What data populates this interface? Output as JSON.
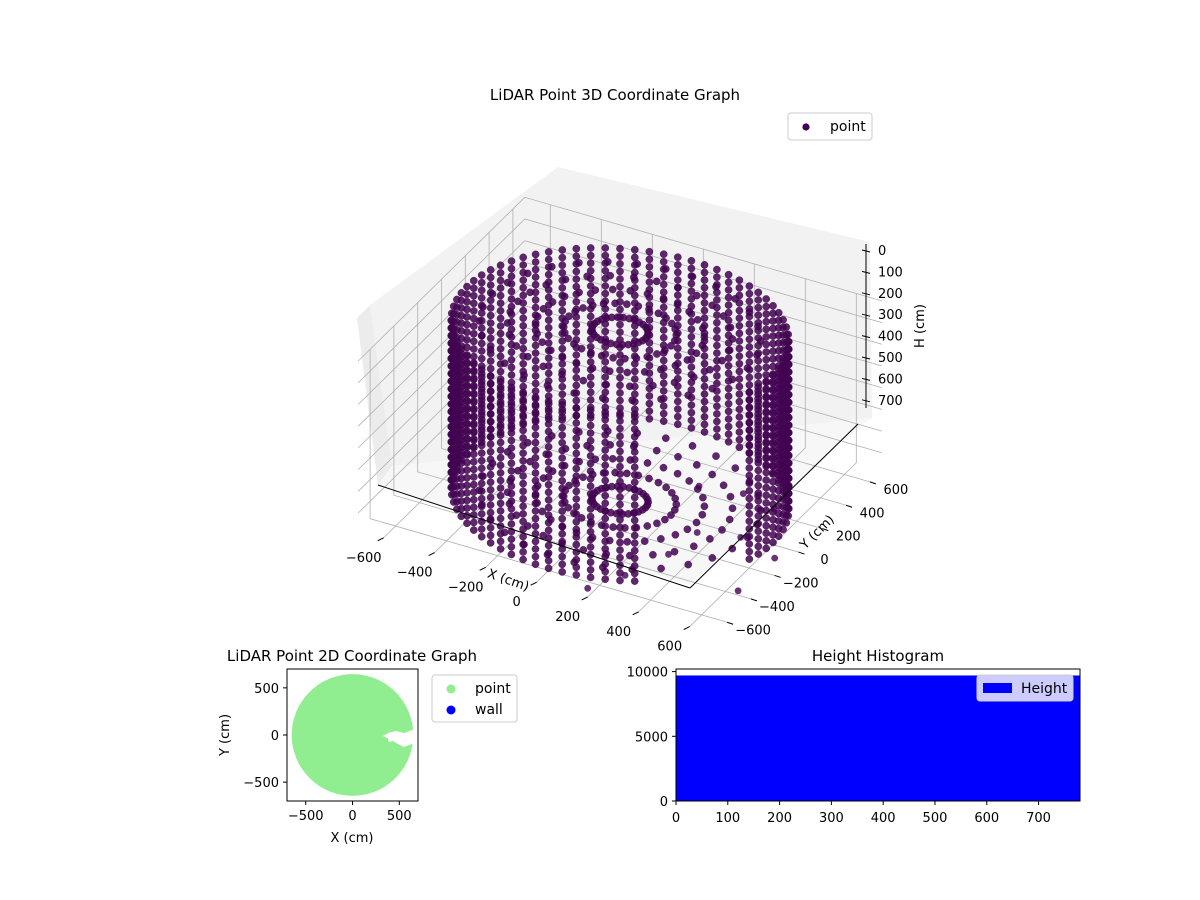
{
  "chart_data": [
    {
      "type": "scatter",
      "projection": "3d",
      "title": "LiDAR Point 3D Coordinate Graph",
      "xlabel": "X (cm)",
      "ylabel": "Y (cm)",
      "zlabel": "H (cm)",
      "xlim": [
        -700,
        700
      ],
      "ylim": [
        -700,
        700
      ],
      "zlim": [
        0,
        780
      ],
      "z_inverted": true,
      "x_ticks": [
        "−600",
        "−400",
        "−200",
        "0",
        "200",
        "400",
        "600"
      ],
      "y_ticks": [
        "−600",
        "−400",
        "−200",
        "0",
        "200",
        "400",
        "600"
      ],
      "z_ticks": [
        "0",
        "100",
        "200",
        "300",
        "400",
        "500",
        "600",
        "700"
      ],
      "grid": true,
      "legend": {
        "position": "top-right",
        "entries": [
          {
            "label": "point",
            "color": "#440154"
          }
        ]
      },
      "series": [
        {
          "name": "point",
          "color": "#440154",
          "shape": "cylindrical-wall",
          "radius": 600,
          "center": [
            0,
            0
          ],
          "h_range": [
            0,
            780
          ],
          "opening_angle_deg": [
            300,
            345
          ]
        },
        {
          "name": "point",
          "color": "#440154",
          "shape": "stray-points",
          "points": [
            [
              450,
              -300,
              400
            ],
            [
              600,
              -250,
              410
            ],
            [
              650,
              -400,
              760
            ],
            [
              300,
              -600,
              700
            ],
            [
              200,
              -700,
              740
            ],
            [
              700,
              -200,
              700
            ],
            [
              520,
              -100,
              720
            ],
            [
              580,
              50,
              650
            ],
            [
              400,
              -450,
              650
            ],
            [
              480,
              -380,
              560
            ]
          ]
        }
      ]
    },
    {
      "type": "scatter",
      "title": "LiDAR Point 2D Coordinate Graph",
      "xlabel": "X (cm)",
      "ylabel": "Y (cm)",
      "xlim": [
        -700,
        700
      ],
      "ylim": [
        -700,
        700
      ],
      "x_ticks": [
        "−500",
        "0",
        "500"
      ],
      "y_ticks": [
        "500",
        "0",
        "−500"
      ],
      "legend": {
        "position": "outside-right",
        "entries": [
          {
            "label": "point",
            "color": "#90ee90"
          },
          {
            "label": "wall",
            "color": "#0000ff"
          }
        ]
      },
      "series": [
        {
          "name": "point",
          "color": "#90ee90",
          "shape": "filled-disc",
          "radius": 650,
          "center": [
            0,
            0
          ]
        }
      ]
    },
    {
      "type": "bar",
      "title": "Height Histogram",
      "xlim": [
        0,
        780
      ],
      "ylim": [
        0,
        10200
      ],
      "x_ticks": [
        "0",
        "100",
        "200",
        "300",
        "400",
        "500",
        "600",
        "700"
      ],
      "y_ticks": [
        "10000",
        "5000",
        "0"
      ],
      "legend": {
        "position": "top-right",
        "entries": [
          {
            "label": "Height",
            "color": "#0000ff"
          }
        ]
      },
      "series": [
        {
          "name": "Height",
          "color": "#0000ff",
          "bin_range": [
            0,
            780
          ],
          "count": 9700
        }
      ]
    }
  ]
}
